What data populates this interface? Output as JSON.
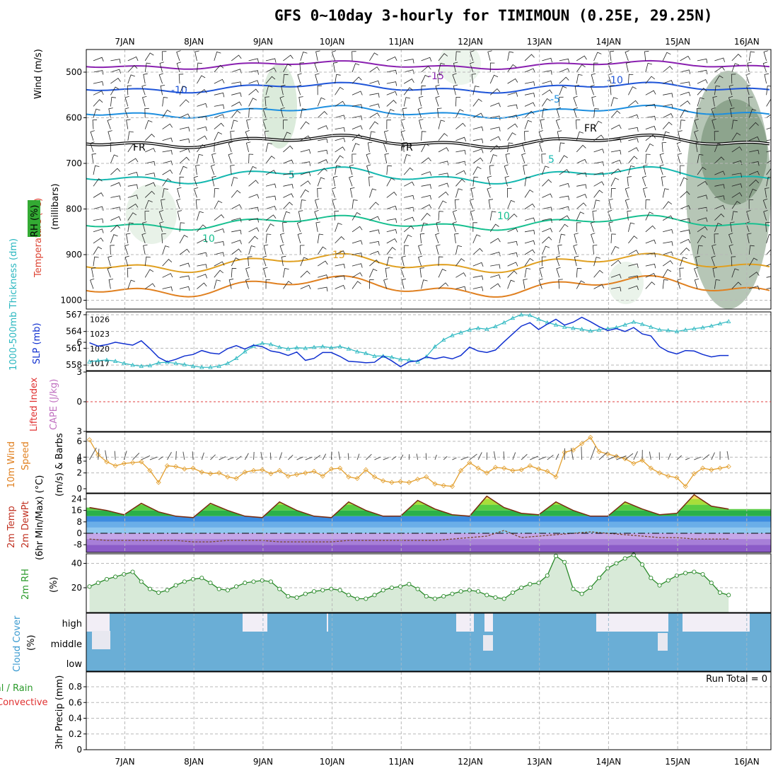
{
  "title": "GFS 0~10day 3-hourly for TIMIMOUN (0.25E, 29.25N)",
  "days": [
    "7JAN",
    "8JAN",
    "9JAN",
    "10JAN",
    "11JAN",
    "12JAN",
    "13JAN",
    "14JAN",
    "15JAN",
    "16JAN"
  ],
  "panels": {
    "upper": {
      "ylabel_wind": "Wind (m/s)",
      "ylabel_temp": "Temperature (°C)",
      "ylabel_rh": "RH (%)",
      "ylabel_unit": "(millibars)",
      "y_ticks": [
        "500",
        "600",
        "700",
        "800",
        "900",
        "1000"
      ],
      "temp_labels": [
        "-15",
        "-10",
        "-10",
        "-5",
        "FR",
        "FR",
        "FR",
        "5",
        "5",
        "10",
        "10",
        "15"
      ]
    },
    "thick": {
      "ylabel_thick": "1000-500mb Thickness (dm)",
      "ylabel_slp": "SLP (mb)",
      "thick_ticks": [
        "567",
        "564",
        "561",
        "558"
      ],
      "slp_ticks": [
        "1026",
        "1023",
        "1020",
        "1017"
      ]
    },
    "cape": {
      "ylabel_li": "Lifted Index",
      "ylabel_cape": "CAPE (J/kg)",
      "y_ticks": [
        "6",
        "3",
        "0",
        "3",
        "6"
      ]
    },
    "wind10": {
      "ylabel_a": "10m Wind",
      "ylabel_b": "Speed",
      "ylabel_c": "(m/s) & Barbs",
      "y_ticks": [
        "6",
        "4",
        "2",
        "0"
      ]
    },
    "temp2m": {
      "ylabel_a": "2m Temp",
      "ylabel_b": "2m DewPt",
      "ylabel_c": "(6hr Min/Max) (°C)",
      "y_ticks": [
        "24",
        "16",
        "8",
        "0",
        "-8"
      ]
    },
    "rh2m": {
      "ylabel": "2m RH",
      "ylabel_unit": "(%)",
      "y_ticks": [
        "40",
        "20"
      ]
    },
    "cloud": {
      "ylabel": "Cloud Cover",
      "ylabel_unit": "(%)",
      "levels": [
        "high",
        "middle",
        "low"
      ]
    },
    "precip": {
      "ylabel_a": "Total / Rain",
      "ylabel_b": "Convective",
      "ylabel_c": "3hr Precip (mm)",
      "y_ticks": [
        "0.8",
        "0.6",
        "0.4",
        "0.2",
        "0"
      ],
      "run_total": "Run Total = 0"
    }
  },
  "colors": {
    "grid": "#b8b8b8",
    "thickness": "#2ab7c0",
    "slp": "#1030d0",
    "wind_speed": "#e3a030",
    "barbs": "#555555",
    "temp_line": "#7a2a10",
    "dewpt_line": "#7a4a30",
    "rh_fill": "#d8ead8",
    "rh_line": "#2a8a2a",
    "cloud": "#6aaed6",
    "cloud_bg": "#f2eef6"
  },
  "chart_data": [
    {
      "type": "line",
      "name": "thickness_slp",
      "x_days_from_7jan": [
        0,
        0.125,
        0.25,
        0.375,
        0.5,
        0.625,
        0.75,
        0.875,
        1,
        1.125,
        1.25,
        1.375,
        1.5,
        1.625,
        1.75,
        1.875,
        2,
        2.125,
        2.25,
        2.375,
        2.5,
        2.625,
        2.75,
        2.875,
        3,
        3.125,
        3.25,
        3.375,
        3.5,
        3.625,
        3.75,
        3.875,
        4,
        4.125,
        4.25,
        4.375,
        4.5,
        4.625,
        4.75,
        4.875,
        5,
        5.125,
        5.25,
        5.375,
        5.5,
        5.625,
        5.75,
        5.875,
        6,
        6.125,
        6.25,
        6.375,
        6.5,
        6.625,
        6.75,
        6.875,
        7,
        7.125,
        7.25,
        7.375,
        7.5,
        7.625,
        7.75,
        7.875,
        8,
        8.125,
        8.25,
        8.375,
        8.5,
        8.625,
        8.75,
        8.875,
        9,
        9.125,
        9.25
      ],
      "series": [
        {
          "name": "1000-500mb Thickness (dm)",
          "values": [
            558.6,
            558.8,
            558.9,
            558.7,
            558.3,
            558.0,
            557.8,
            557.9,
            558.4,
            558.5,
            558.3,
            558.1,
            557.8,
            557.6,
            557.6,
            557.8,
            558.3,
            559.2,
            560.4,
            561.4,
            561.9,
            561.7,
            561.2,
            560.9,
            561.1,
            561.0,
            561.2,
            561.3,
            561.1,
            561.3,
            560.9,
            560.4,
            560.1,
            559.6,
            559.6,
            559.4,
            559.0,
            558.9,
            558.6,
            559.5,
            561.3,
            562.5,
            563.3,
            563.8,
            564.3,
            564.6,
            564.4,
            564.9,
            565.6,
            566.4,
            567.0,
            566.9,
            566.2,
            565.6,
            565.2,
            564.8,
            564.6,
            564.4,
            564.1,
            564.3,
            564.5,
            564.7,
            565.2,
            565.7,
            565.3,
            564.8,
            564.3,
            564.2,
            564.0,
            564.3,
            564.5,
            564.7,
            565.0,
            565.4,
            565.8
          ]
        },
        {
          "name": "SLP (mb)",
          "values": [
            1021.2,
            1020.5,
            1020.8,
            1021.3,
            1021.0,
            1020.7,
            1021.6,
            1020.0,
            1018.2,
            1017.3,
            1017.8,
            1018.5,
            1018.8,
            1019.6,
            1019.1,
            1018.9,
            1020.0,
            1020.6,
            1019.9,
            1020.7,
            1020.4,
            1019.5,
            1019.2,
            1018.6,
            1019.3,
            1017.6,
            1018.0,
            1019.2,
            1019.2,
            1018.4,
            1017.4,
            1017.3,
            1017.1,
            1017.2,
            1018.5,
            1017.5,
            1016.3,
            1017.3,
            1017.5,
            1018.3,
            1017.9,
            1018.3,
            1017.9,
            1018.6,
            1020.3,
            1019.5,
            1019.2,
            1019.7,
            1021.4,
            1023.0,
            1024.6,
            1025.3,
            1023.9,
            1025.0,
            1026.0,
            1024.8,
            1025.4,
            1026.4,
            1025.5,
            1024.5,
            1023.7,
            1024.1,
            1023.5,
            1024.3,
            1023.0,
            1022.6,
            1020.4,
            1019.4,
            1018.9,
            1019.6,
            1019.5,
            1018.8,
            1018.3,
            1018.6,
            1018.6
          ]
        }
      ],
      "ylim_thickness": [
        557,
        567.5
      ],
      "ylim_slp": [
        1015.5,
        1027.5
      ]
    },
    {
      "type": "line",
      "name": "10m wind speed",
      "x_days_from_7jan": [
        0,
        0.125,
        0.25,
        0.375,
        0.5,
        0.625,
        0.75,
        0.875,
        1,
        1.125,
        1.25,
        1.375,
        1.5,
        1.625,
        1.75,
        1.875,
        2,
        2.125,
        2.25,
        2.375,
        2.5,
        2.625,
        2.75,
        2.875,
        3,
        3.125,
        3.25,
        3.375,
        3.5,
        3.625,
        3.75,
        3.875,
        4,
        4.125,
        4.25,
        4.375,
        4.5,
        4.625,
        4.75,
        4.875,
        5,
        5.125,
        5.25,
        5.375,
        5.5,
        5.625,
        5.75,
        5.875,
        6,
        6.125,
        6.25,
        6.375,
        6.5,
        6.625,
        6.75,
        6.875,
        7,
        7.125,
        7.25,
        7.375,
        7.5,
        7.625,
        7.75,
        7.875,
        8,
        8.125,
        8.25,
        8.375,
        8.5,
        8.625,
        8.75,
        8.875,
        9,
        9.125,
        9.25
      ],
      "series": [
        {
          "name": "10m Wind Speed (m/s)",
          "values": [
            6.2,
            4.3,
            3.4,
            2.9,
            3.2,
            3.3,
            3.4,
            2.3,
            0.8,
            2.9,
            2.8,
            2.5,
            2.6,
            2.1,
            1.9,
            2.0,
            1.5,
            1.3,
            2.1,
            2.3,
            2.4,
            1.9,
            2.3,
            1.6,
            1.8,
            2.0,
            2.2,
            1.6,
            2.5,
            2.6,
            1.5,
            1.3,
            2.4,
            1.5,
            1.0,
            0.8,
            0.9,
            0.8,
            1.2,
            1.5,
            0.6,
            0.4,
            0.3,
            2.3,
            3.3,
            2.6,
            2.0,
            2.7,
            2.6,
            2.3,
            2.4,
            2.9,
            2.5,
            2.2,
            1.5,
            4.6,
            4.9,
            5.7,
            6.5,
            4.7,
            4.4,
            4.1,
            3.8,
            3.2,
            3.6,
            2.6,
            2.0,
            1.6,
            1.4,
            0.3,
            1.9,
            2.6,
            2.4,
            2.6,
            2.8
          ]
        }
      ],
      "ylim": [
        0,
        6.8
      ]
    },
    {
      "type": "line",
      "name": "2m temperature and dewpoint",
      "x_days_from_7jan": [
        0,
        0.25,
        0.5,
        0.75,
        1,
        1.25,
        1.5,
        1.75,
        2,
        2.25,
        2.5,
        2.75,
        3,
        3.25,
        3.5,
        3.75,
        4,
        4.25,
        4.5,
        4.75,
        5,
        5.25,
        5.5,
        5.75,
        6,
        6.25,
        6.5,
        6.75,
        7,
        7.25,
        7.5,
        7.75,
        8,
        8.25,
        8.5,
        8.75,
        9,
        9.25
      ],
      "series": [
        {
          "name": "2m Temp (°C)",
          "values": [
            18,
            16,
            13,
            21,
            15,
            12,
            11,
            21,
            16,
            12,
            11,
            22,
            16,
            12,
            11,
            22,
            16,
            12,
            12,
            23,
            17,
            13,
            12,
            26,
            18,
            14,
            13,
            22,
            16,
            12,
            12,
            22,
            17,
            13,
            14,
            27,
            19,
            17
          ]
        },
        {
          "name": "2m DewPt (°C)",
          "values": [
            -4,
            -5,
            -5,
            -5,
            -5,
            -5,
            -6,
            -6,
            -5,
            -5,
            -5,
            -6,
            -6,
            -6,
            -6,
            -5,
            -5,
            -5,
            -5,
            -5,
            -5,
            -4,
            -3,
            -2,
            2,
            -3,
            -2,
            -1,
            0,
            1,
            0,
            -1,
            -2,
            -3,
            -3,
            -4,
            -4,
            -4
          ]
        }
      ],
      "ylim": [
        -14,
        28
      ]
    },
    {
      "type": "area",
      "name": "2m RH",
      "x_days_from_7jan": [
        0,
        0.125,
        0.25,
        0.375,
        0.5,
        0.625,
        0.75,
        0.875,
        1,
        1.125,
        1.25,
        1.375,
        1.5,
        1.625,
        1.75,
        1.875,
        2,
        2.125,
        2.25,
        2.375,
        2.5,
        2.625,
        2.75,
        2.875,
        3,
        3.125,
        3.25,
        3.375,
        3.5,
        3.625,
        3.75,
        3.875,
        4,
        4.125,
        4.25,
        4.375,
        4.5,
        4.625,
        4.75,
        4.875,
        5,
        5.125,
        5.25,
        5.375,
        5.5,
        5.625,
        5.75,
        5.875,
        6,
        6.125,
        6.25,
        6.375,
        6.5,
        6.625,
        6.75,
        6.875,
        7,
        7.125,
        7.25,
        7.375,
        7.5,
        7.625,
        7.75,
        7.875,
        8,
        8.125,
        8.25,
        8.375,
        8.5,
        8.625,
        8.75,
        8.875,
        9,
        9.125,
        9.25
      ],
      "series": [
        {
          "name": "2m RH (%)",
          "values": [
            21,
            24,
            27,
            29,
            31,
            33,
            25,
            19,
            16,
            18,
            22,
            25,
            27,
            28,
            24,
            19,
            18,
            21,
            24,
            25,
            26,
            25,
            19,
            13,
            12,
            15,
            17,
            18,
            19,
            18,
            14,
            11,
            11,
            14,
            18,
            20,
            21,
            23,
            19,
            13,
            11,
            13,
            15,
            17,
            18,
            17,
            14,
            12,
            11,
            16,
            20,
            23,
            24,
            30,
            46,
            41,
            19,
            15,
            20,
            28,
            36,
            40,
            44,
            47,
            39,
            28,
            22,
            26,
            30,
            32,
            33,
            31,
            24,
            16,
            14
          ]
        }
      ],
      "ylim": [
        6,
        48
      ]
    }
  ]
}
